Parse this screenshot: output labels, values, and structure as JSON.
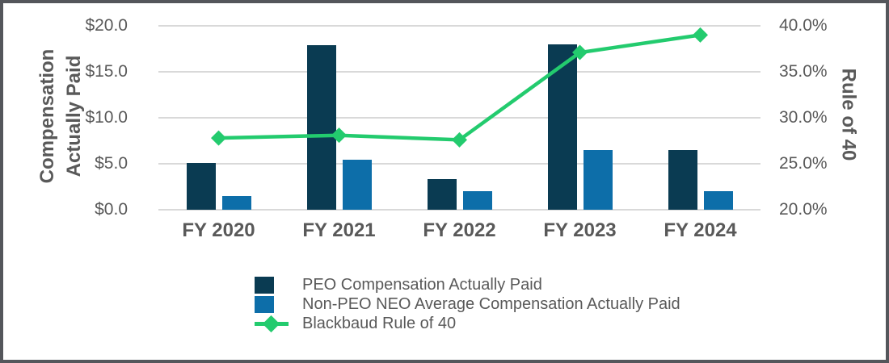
{
  "styles": {
    "border_color": "#54565b",
    "background": "#ffffff",
    "grid_color": "#d9d9d9",
    "text_color": "#595959"
  },
  "chart_data": {
    "type": "combo-bar-line",
    "categories": [
      "FY 2020",
      "FY 2021",
      "FY 2022",
      "FY 2023",
      "FY 2024"
    ],
    "series": [
      {
        "name": "PEO Compensation Actually Paid",
        "type": "bar",
        "axis": "left",
        "color": "#0a3b52",
        "values": [
          5.1,
          17.9,
          3.3,
          18.0,
          6.5
        ]
      },
      {
        "name": "Non-PEO NEO Average Compensation Actually Paid",
        "type": "bar",
        "axis": "left",
        "color": "#0d6ea9",
        "values": [
          1.5,
          5.4,
          2.0,
          6.5,
          2.0
        ]
      },
      {
        "name": "Blackbaud Rule of 40",
        "type": "line",
        "axis": "right",
        "marker": "diamond",
        "color": "#23cb6e",
        "values": [
          27.8,
          28.1,
          27.6,
          37.1,
          39.0
        ]
      }
    ],
    "left_axis": {
      "title": "Compensation Actually Paid",
      "title_lines": [
        "Compensation",
        "Actually Paid"
      ],
      "ticks": [
        "$20.0",
        "$15.0",
        "$10.0",
        "$5.0",
        "$0.0"
      ],
      "min": 0,
      "max": 20
    },
    "right_axis": {
      "title": "Rule of 40",
      "ticks": [
        "40.0%",
        "35.0%",
        "30.0%",
        "25.0%",
        "20.0%"
      ],
      "min": 20,
      "max": 40
    },
    "grid": true,
    "legend_position": "bottom"
  }
}
